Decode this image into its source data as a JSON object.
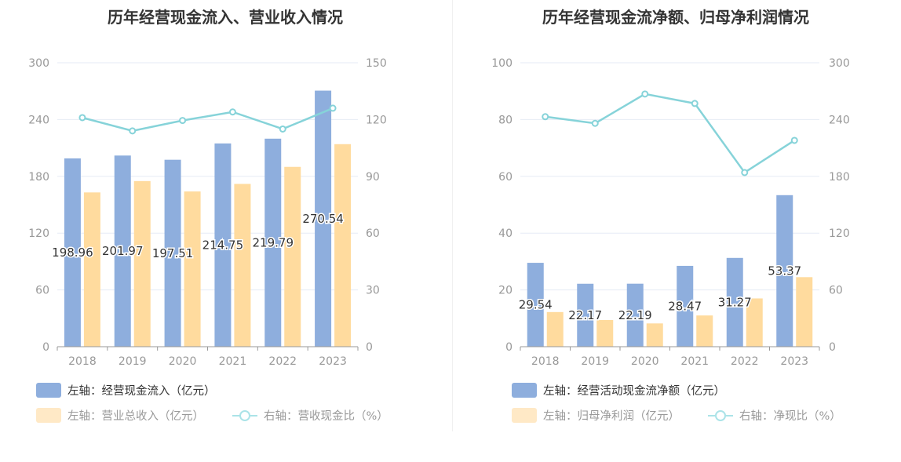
{
  "chart_data": [
    {
      "type": "bar+line",
      "title": "历年经营现金流入、营业收入情况",
      "categories": [
        "2018",
        "2019",
        "2020",
        "2021",
        "2022",
        "2023"
      ],
      "left_axis": {
        "min": 0,
        "max": 300,
        "ticks": [
          "0",
          "60",
          "120",
          "180",
          "240",
          "300"
        ]
      },
      "right_axis": {
        "min": 0,
        "max": 150,
        "ticks": [
          "0",
          "30",
          "60",
          "90",
          "120",
          "150"
        ]
      },
      "series": [
        {
          "name": "左轴：经营现金流入（亿元）",
          "type": "bar",
          "axis": "left",
          "color": "#8eaedd",
          "values": [
            198.96,
            201.97,
            197.51,
            214.75,
            219.79,
            270.54
          ],
          "labels": [
            "198.96",
            "201.97",
            "197.51",
            "214.75",
            "219.79",
            "270.54"
          ]
        },
        {
          "name": "左轴：营业总收入（亿元）",
          "type": "bar",
          "axis": "left",
          "color": "#ffdb9e",
          "values": [
            163,
            175,
            164,
            172,
            190,
            214
          ]
        },
        {
          "name": "右轴：营收现金比（%）",
          "type": "line",
          "axis": "right",
          "color": "#86d3d9",
          "values": [
            121,
            114,
            119.5,
            124,
            115,
            126
          ]
        }
      ]
    },
    {
      "type": "bar+line",
      "title": "历年经营现金流净额、归母净利润情况",
      "categories": [
        "2018",
        "2019",
        "2020",
        "2021",
        "2022",
        "2023"
      ],
      "left_axis": {
        "min": 0,
        "max": 100,
        "ticks": [
          "0",
          "20",
          "40",
          "60",
          "80",
          "100"
        ]
      },
      "right_axis": {
        "min": 0,
        "max": 300,
        "ticks": [
          "0",
          "60",
          "120",
          "180",
          "240",
          "300"
        ]
      },
      "series": [
        {
          "name": "左轴：经营活动现金流净额（亿元）",
          "type": "bar",
          "axis": "left",
          "color": "#8eaedd",
          "values": [
            29.54,
            22.17,
            22.19,
            28.47,
            31.27,
            53.37
          ],
          "labels": [
            "29.54",
            "22.17",
            "22.19",
            "28.47",
            "31.27",
            "53.37"
          ]
        },
        {
          "name": "左轴：归母净利润（亿元）",
          "type": "bar",
          "axis": "left",
          "color": "#ffdb9e",
          "values": [
            12.2,
            9.4,
            8.2,
            11.0,
            17.0,
            24.5
          ]
        },
        {
          "name": "右轴：净现比（%）",
          "type": "line",
          "axis": "right",
          "color": "#86d3d9",
          "values": [
            243,
            236,
            267,
            257,
            184,
            218
          ]
        }
      ]
    }
  ]
}
